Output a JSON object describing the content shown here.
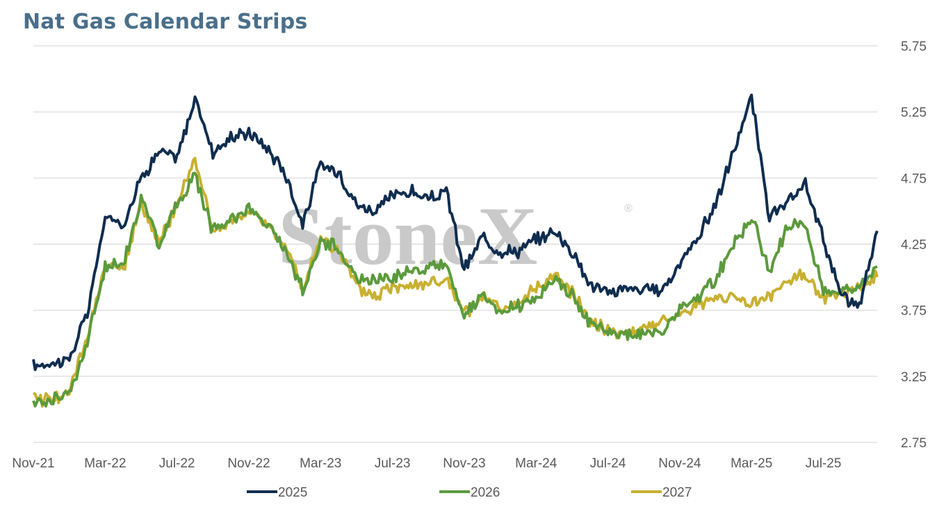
{
  "title": "Nat Gas Calendar Strips",
  "watermark": "StoneX",
  "watermark_mark": "®",
  "colors": {
    "2025": "#0f2d4f",
    "2026": "#5b9a3c",
    "2027": "#c8b030",
    "grid": "#d9d9d9",
    "title": "#4a6f8a"
  },
  "chart_data": {
    "type": "line",
    "title": "Nat Gas Calendar Strips",
    "xlabel": "",
    "ylabel": "",
    "ylim": [
      2.75,
      5.75
    ],
    "y_ticks": [
      "5.75",
      "5.25",
      "4.75",
      "4.25",
      "3.75",
      "3.25",
      "2.75"
    ],
    "x_ticks": [
      "Nov-21",
      "Mar-22",
      "Jul-22",
      "Nov-22",
      "Mar-23",
      "Jul-23",
      "Nov-23",
      "Mar-24",
      "Jul-24",
      "Nov-24",
      "Mar-25",
      "Jul-25"
    ],
    "grid": true,
    "legend": "bottom",
    "x": [
      "2021-11",
      "2021-12",
      "2022-01",
      "2022-02",
      "2022-03",
      "2022-04",
      "2022-05",
      "2022-06",
      "2022-07",
      "2022-08",
      "2022-09",
      "2022-10",
      "2022-11",
      "2022-12",
      "2023-01",
      "2023-02",
      "2023-03",
      "2023-04",
      "2023-05",
      "2023-06",
      "2023-07",
      "2023-08",
      "2023-09",
      "2023-10",
      "2023-11",
      "2023-12",
      "2024-01",
      "2024-02",
      "2024-03",
      "2024-04",
      "2024-05",
      "2024-06",
      "2024-07",
      "2024-08",
      "2024-09",
      "2024-10",
      "2024-11",
      "2024-12",
      "2025-01",
      "2025-02",
      "2025-03",
      "2025-04",
      "2025-05",
      "2025-06",
      "2025-07",
      "2025-08",
      "2025-09",
      "2025-10"
    ],
    "series": [
      {
        "name": "2025",
        "values": [
          3.33,
          3.35,
          3.38,
          3.72,
          4.45,
          4.4,
          4.75,
          4.95,
          4.9,
          5.35,
          4.95,
          5.05,
          5.1,
          4.98,
          4.8,
          4.4,
          4.85,
          4.8,
          4.55,
          4.5,
          4.62,
          4.65,
          4.58,
          4.65,
          4.05,
          4.3,
          4.2,
          4.2,
          4.28,
          4.35,
          4.2,
          3.95,
          3.88,
          3.92,
          3.9,
          3.9,
          4.1,
          4.3,
          4.55,
          4.95,
          5.35,
          4.45,
          4.55,
          4.7,
          4.3,
          3.85,
          3.78,
          4.35
        ]
      },
      {
        "name": "2026",
        "values": [
          3.05,
          3.08,
          3.12,
          3.5,
          4.08,
          4.1,
          4.6,
          4.25,
          4.55,
          4.78,
          4.35,
          4.45,
          4.52,
          4.4,
          4.22,
          3.9,
          4.28,
          4.22,
          3.98,
          3.98,
          4.0,
          4.05,
          4.07,
          4.1,
          3.7,
          3.85,
          3.72,
          3.78,
          3.85,
          3.98,
          3.88,
          3.65,
          3.58,
          3.56,
          3.58,
          3.58,
          3.75,
          3.85,
          3.98,
          4.25,
          4.45,
          4.05,
          4.38,
          4.4,
          3.9,
          3.9,
          3.93,
          4.08
        ]
      },
      {
        "name": "2027",
        "values": [
          3.08,
          3.08,
          3.12,
          3.55,
          4.1,
          4.05,
          4.55,
          4.25,
          4.55,
          4.9,
          4.35,
          4.4,
          4.5,
          4.4,
          4.25,
          3.9,
          4.3,
          4.2,
          3.92,
          3.85,
          3.93,
          3.95,
          3.95,
          3.98,
          3.72,
          3.85,
          3.75,
          3.78,
          3.92,
          4.02,
          3.88,
          3.68,
          3.6,
          3.58,
          3.62,
          3.65,
          3.72,
          3.8,
          3.82,
          3.87,
          3.8,
          3.85,
          3.97,
          4.02,
          3.85,
          3.88,
          3.92,
          4.0
        ]
      }
    ]
  },
  "legend": [
    {
      "label": "2025",
      "color": "#0f2d4f"
    },
    {
      "label": "2026",
      "color": "#5b9a3c"
    },
    {
      "label": "2027",
      "color": "#c8b030"
    }
  ]
}
